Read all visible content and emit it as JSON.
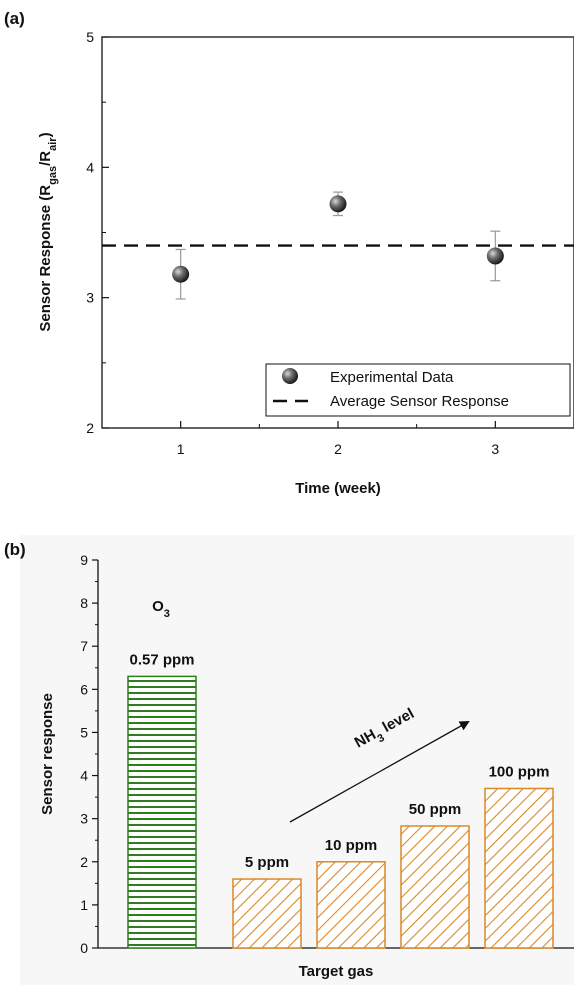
{
  "chart_data": [
    {
      "panel": "(a)",
      "type": "scatter",
      "xlabel": "Time (week)",
      "ylabel": {
        "main": "Sensor Response (R",
        "sub1": "gas",
        "mid": "/R",
        "sub2": "air",
        "end": ")"
      },
      "xlim": [
        0.5,
        3.5
      ],
      "ylim": [
        2,
        5
      ],
      "xticks": [
        1,
        2,
        3
      ],
      "yticks": [
        2,
        3,
        4,
        5
      ],
      "series": [
        {
          "name": "Experimental Data",
          "x": [
            1,
            2,
            3
          ],
          "y": [
            3.18,
            3.72,
            3.32
          ],
          "error": [
            0.19,
            0.09,
            0.19
          ]
        }
      ],
      "average": {
        "name": "Average Sensor Response",
        "y": 3.4
      },
      "legend_position": "bottom-right",
      "grid": false
    },
    {
      "panel": "(b)",
      "type": "bar",
      "xlabel": "Target gas",
      "ylabel": "Sensor response",
      "ylim": [
        0,
        9
      ],
      "yticks": [
        0,
        1,
        2,
        3,
        4,
        5,
        6,
        7,
        8,
        9
      ],
      "bars": [
        {
          "label": "0.57 ppm",
          "gas": "O",
          "gas_sub": "3",
          "value": 6.3,
          "hatch": "horizontal",
          "color": "#2e7d1f"
        },
        {
          "label": "5 ppm",
          "value": 1.6,
          "hatch": "diagonal",
          "color": "#d9892a"
        },
        {
          "label": "10 ppm",
          "value": 2.0,
          "hatch": "diagonal",
          "color": "#d9892a"
        },
        {
          "label": "50 ppm",
          "value": 2.83,
          "hatch": "diagonal",
          "color": "#d9892a"
        },
        {
          "label": "100 ppm",
          "value": 3.7,
          "hatch": "diagonal",
          "color": "#d9892a"
        }
      ],
      "annotation": {
        "text_main": "NH",
        "text_sub": "3",
        "text_end": " level"
      },
      "grid": false
    }
  ]
}
